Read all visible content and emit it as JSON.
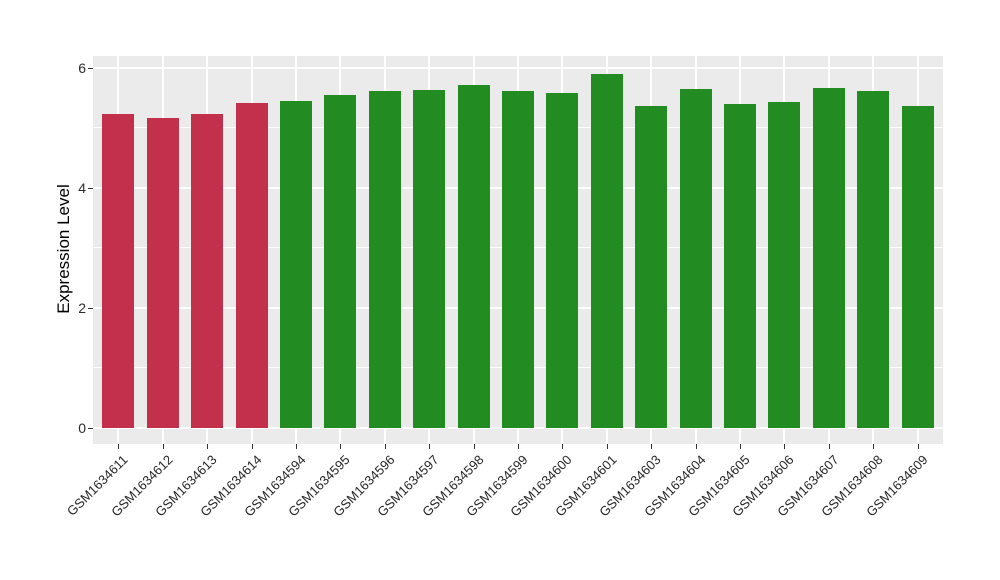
{
  "figure": {
    "background": "#FFFFFF",
    "panel_background": "#EBEBEB",
    "gridline_color": "#FFFFFF",
    "tick_color": "#333333",
    "axis_text_color": "#262626"
  },
  "chart_data": {
    "type": "bar",
    "title": "",
    "xlabel": "",
    "ylabel": "Expression Level",
    "ylim": [
      0,
      6.27
    ],
    "yticks": [
      0,
      2,
      4,
      6
    ],
    "yticks_minor": [
      1,
      3,
      5
    ],
    "grid": "major and minor horizontal white lines, vertical white lines at category centers",
    "legend": "none",
    "categories": [
      "GSM1634611",
      "GSM1634612",
      "GSM1634613",
      "GSM1634614",
      "GSM1634594",
      "GSM1634595",
      "GSM1634596",
      "GSM1634597",
      "GSM1634598",
      "GSM1634599",
      "GSM1634600",
      "GSM1634601",
      "GSM1634603",
      "GSM1634604",
      "GSM1634605",
      "GSM1634606",
      "GSM1634607",
      "GSM1634608",
      "GSM1634609"
    ],
    "values": [
      5.24,
      5.16,
      5.23,
      5.41,
      5.45,
      5.55,
      5.62,
      5.64,
      5.71,
      5.62,
      5.59,
      5.9,
      5.37,
      5.65,
      5.4,
      5.44,
      5.66,
      5.61,
      5.37
    ],
    "groups": [
      "group1",
      "group1",
      "group1",
      "group1",
      "group2",
      "group2",
      "group2",
      "group2",
      "group2",
      "group2",
      "group2",
      "group2",
      "group2",
      "group2",
      "group2",
      "group2",
      "group2",
      "group2",
      "group2"
    ],
    "palette": {
      "group1": "#C2304B",
      "group2": "#228B22"
    }
  }
}
